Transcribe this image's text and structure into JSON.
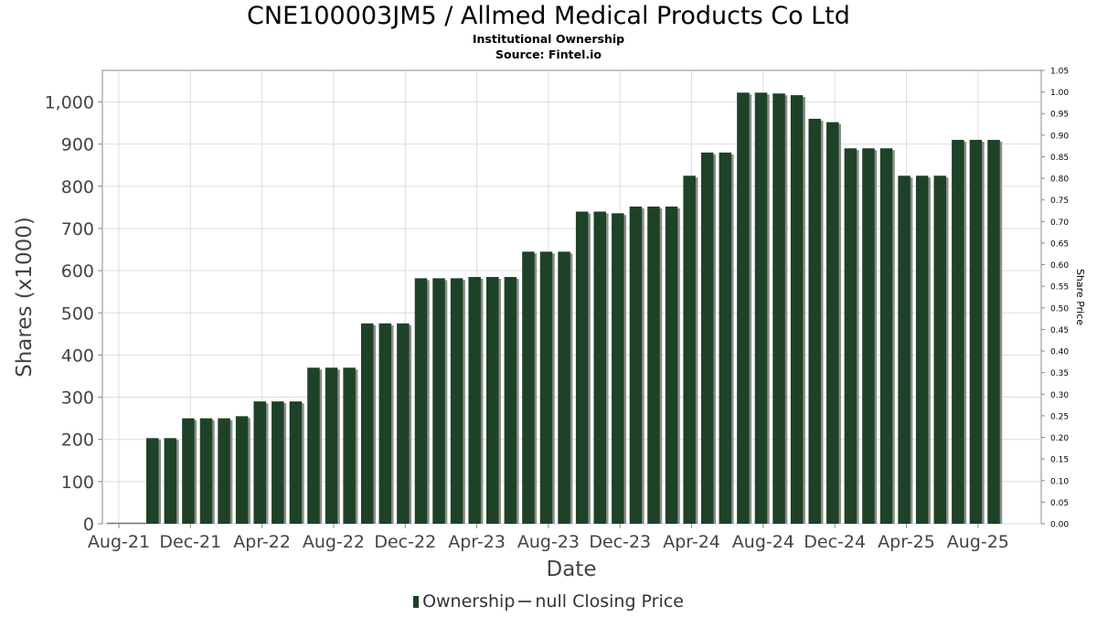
{
  "chart_data": {
    "type": "bar",
    "title": "CNE100003JM5 / Allmed Medical Products Co Ltd",
    "subtitle": "Institutional Ownership",
    "source": "Source: Fintel.io",
    "xlabel": "Date",
    "ylabel": "Shares (x1000)",
    "y2label": "Share Price",
    "ylim": [
      0,
      1000
    ],
    "y2lim": [
      0,
      1.05
    ],
    "yticks": [
      "0",
      "100",
      "200",
      "300",
      "400",
      "500",
      "600",
      "700",
      "800",
      "900",
      "1,000"
    ],
    "y2ticks": [
      "0.00",
      "0.05",
      "0.10",
      "0.15",
      "0.20",
      "0.25",
      "0.30",
      "0.35",
      "0.40",
      "0.45",
      "0.50",
      "0.55",
      "0.60",
      "0.65",
      "0.70",
      "0.75",
      "0.80",
      "0.85",
      "0.90",
      "0.95",
      "1.00",
      "1.05"
    ],
    "xticks": [
      "Aug-21",
      "Dec-21",
      "Apr-22",
      "Aug-22",
      "Dec-22",
      "Apr-23",
      "Aug-23",
      "Dec-23",
      "Apr-24",
      "Aug-24",
      "Dec-24",
      "Apr-25",
      "Aug-25"
    ],
    "grid": true,
    "legend_position": "bottom",
    "series": [
      {
        "name": "Ownership",
        "color": "#1e4227",
        "values": [
          203,
          203,
          250,
          250,
          250,
          255,
          290,
          290,
          290,
          370,
          370,
          370,
          475,
          475,
          475,
          582,
          582,
          582,
          585,
          585,
          585,
          645,
          645,
          645,
          740,
          740,
          736,
          752,
          752,
          752,
          825,
          880,
          880,
          1022,
          1022,
          1020,
          1016,
          960,
          952,
          890,
          890,
          890,
          825,
          825,
          825,
          910,
          910,
          910
        ]
      }
    ],
    "legend": {
      "ownership": "Ownership",
      "price": "null Closing Price"
    }
  }
}
